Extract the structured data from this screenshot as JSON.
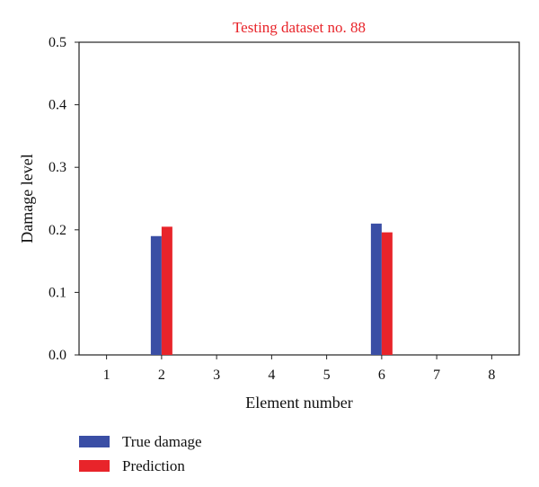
{
  "chart_data": {
    "type": "bar",
    "title": "Testing dataset no. 88",
    "xlabel": "Element number",
    "ylabel": "Damage level",
    "categories": [
      "1",
      "2",
      "3",
      "4",
      "5",
      "6",
      "7",
      "8"
    ],
    "ylim": [
      0,
      0.5
    ],
    "yticks": [
      "0.0",
      "0.1",
      "0.2",
      "0.3",
      "0.4",
      "0.5"
    ],
    "series": [
      {
        "name": "True damage",
        "values": [
          0,
          0.19,
          0,
          0,
          0,
          0.21,
          0,
          0
        ],
        "color": "#3a4ea5"
      },
      {
        "name": "Prediction",
        "values": [
          0,
          0.205,
          0,
          0,
          0,
          0.196,
          0,
          0
        ],
        "color": "#e8242a"
      }
    ],
    "title_color": "#e8242a",
    "grid": false,
    "legend_position": "bottom-left, below plot"
  }
}
